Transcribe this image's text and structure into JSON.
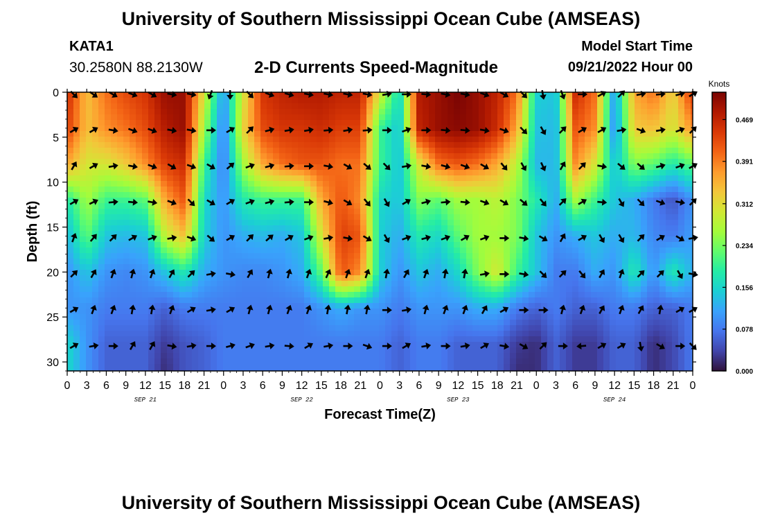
{
  "header": {
    "title": "University of Southern Mississippi Ocean Cube (AMSEAS)",
    "station_id": "KATA1",
    "coordinates": "30.2580N  88.2130W",
    "subtitle": "2-D Currents Speed-Magnitude",
    "model_start_label": "Model Start Time",
    "model_start_value": "09/21/2022 Hour 00"
  },
  "footer": {
    "title": "University of Southern Mississippi Ocean Cube (AMSEAS)"
  },
  "colors": {
    "scale": [
      "#30123b",
      "#4145ab",
      "#4675ed",
      "#39a2fc",
      "#1bcfd4",
      "#24eca6",
      "#61fc6c",
      "#a4fc3b",
      "#d1e834",
      "#f3c63a",
      "#fe9b2d",
      "#f36315",
      "#d93806",
      "#b11901",
      "#7a0403"
    ],
    "arrow": "#000000"
  },
  "chart_data": {
    "type": "heatmap",
    "title": "2-D Currents Speed-Magnitude",
    "xlabel": "Forecast Time(Z)",
    "ylabel": "Depth (ft)",
    "x_range_hours": [
      0,
      96
    ],
    "ylim": [
      0,
      31
    ],
    "x_tick_labels": [
      "0",
      "3",
      "6",
      "9",
      "12",
      "15",
      "18",
      "21",
      "0",
      "3",
      "6",
      "9",
      "12",
      "15",
      "18",
      "21",
      "0",
      "3",
      "6",
      "9",
      "12",
      "15",
      "18",
      "21",
      "0",
      "3",
      "6",
      "9",
      "12",
      "15",
      "18",
      "21",
      "0"
    ],
    "day_labels": [
      {
        "hour": 12,
        "label": "SEP 21"
      },
      {
        "hour": 36,
        "label": "SEP 22"
      },
      {
        "hour": 60,
        "label": "SEP 23"
      },
      {
        "hour": 84,
        "label": "SEP 24"
      }
    ],
    "y_ticks": [
      0,
      5,
      10,
      15,
      20,
      25,
      30
    ],
    "colorbar": {
      "unit": "Knots",
      "min": 0.0,
      "max": 0.52,
      "tick_values": [
        0.0,
        0.078,
        0.156,
        0.234,
        0.312,
        0.391,
        0.469
      ],
      "tick_labels": [
        "0.000",
        "0.078",
        "0.156",
        "0.234",
        "0.312",
        "0.391",
        "0.469"
      ]
    },
    "speed_hours": [
      0,
      3,
      6,
      9,
      12,
      15,
      18,
      21,
      24,
      27,
      30,
      33,
      36,
      39,
      42,
      45,
      48,
      51,
      54,
      57,
      60,
      63,
      66,
      69,
      72,
      75,
      78,
      81,
      84,
      87,
      90,
      93,
      96
    ],
    "speed_depths": [
      0,
      4,
      8,
      12,
      16,
      20,
      24,
      28,
      31
    ],
    "speed_knots": [
      [
        0.46,
        0.34,
        0.4,
        0.43,
        0.45,
        0.5,
        0.5,
        0.3,
        0.1,
        0.3,
        0.45,
        0.47,
        0.48,
        0.48,
        0.47,
        0.47,
        0.3,
        0.16,
        0.48,
        0.5,
        0.52,
        0.5,
        0.47,
        0.4,
        0.15,
        0.14,
        0.46,
        0.4,
        0.1,
        0.36,
        0.4,
        0.32,
        0.45
      ],
      [
        0.44,
        0.34,
        0.38,
        0.4,
        0.43,
        0.48,
        0.5,
        0.26,
        0.08,
        0.32,
        0.43,
        0.45,
        0.45,
        0.46,
        0.44,
        0.44,
        0.2,
        0.14,
        0.47,
        0.5,
        0.51,
        0.5,
        0.46,
        0.36,
        0.14,
        0.13,
        0.42,
        0.38,
        0.09,
        0.33,
        0.34,
        0.3,
        0.38
      ],
      [
        0.36,
        0.3,
        0.3,
        0.33,
        0.38,
        0.44,
        0.46,
        0.2,
        0.08,
        0.26,
        0.36,
        0.4,
        0.42,
        0.42,
        0.4,
        0.4,
        0.2,
        0.14,
        0.3,
        0.4,
        0.42,
        0.4,
        0.36,
        0.28,
        0.13,
        0.13,
        0.38,
        0.3,
        0.14,
        0.24,
        0.22,
        0.18,
        0.22
      ],
      [
        0.18,
        0.26,
        0.2,
        0.2,
        0.22,
        0.36,
        0.42,
        0.16,
        0.1,
        0.18,
        0.2,
        0.2,
        0.2,
        0.36,
        0.42,
        0.38,
        0.16,
        0.14,
        0.24,
        0.22,
        0.26,
        0.26,
        0.28,
        0.24,
        0.18,
        0.12,
        0.26,
        0.2,
        0.14,
        0.12,
        0.08,
        0.05,
        0.1
      ],
      [
        0.13,
        0.22,
        0.14,
        0.13,
        0.14,
        0.28,
        0.34,
        0.15,
        0.1,
        0.12,
        0.13,
        0.12,
        0.14,
        0.3,
        0.44,
        0.42,
        0.15,
        0.12,
        0.18,
        0.16,
        0.22,
        0.26,
        0.26,
        0.24,
        0.14,
        0.1,
        0.12,
        0.14,
        0.12,
        0.13,
        0.09,
        0.08,
        0.11
      ],
      [
        0.1,
        0.14,
        0.1,
        0.09,
        0.1,
        0.14,
        0.18,
        0.12,
        0.1,
        0.09,
        0.09,
        0.1,
        0.12,
        0.22,
        0.42,
        0.38,
        0.15,
        0.1,
        0.14,
        0.12,
        0.16,
        0.24,
        0.3,
        0.2,
        0.14,
        0.08,
        0.08,
        0.12,
        0.1,
        0.18,
        0.1,
        0.18,
        0.12
      ],
      [
        0.1,
        0.1,
        0.08,
        0.08,
        0.08,
        0.06,
        0.08,
        0.08,
        0.08,
        0.08,
        0.08,
        0.08,
        0.08,
        0.1,
        0.12,
        0.1,
        0.1,
        0.08,
        0.1,
        0.1,
        0.1,
        0.12,
        0.12,
        0.08,
        0.06,
        0.08,
        0.06,
        0.06,
        0.08,
        0.08,
        0.06,
        0.06,
        0.08
      ],
      [
        0.16,
        0.1,
        0.06,
        0.06,
        0.06,
        0.03,
        0.05,
        0.06,
        0.08,
        0.08,
        0.08,
        0.08,
        0.08,
        0.08,
        0.08,
        0.08,
        0.08,
        0.06,
        0.08,
        0.08,
        0.06,
        0.06,
        0.06,
        0.03,
        0.02,
        0.06,
        0.03,
        0.03,
        0.06,
        0.06,
        0.02,
        0.04,
        0.08
      ],
      [
        0.16,
        0.1,
        0.06,
        0.06,
        0.06,
        0.02,
        0.05,
        0.06,
        0.08,
        0.08,
        0.08,
        0.08,
        0.08,
        0.08,
        0.08,
        0.08,
        0.08,
        0.06,
        0.08,
        0.08,
        0.06,
        0.06,
        0.06,
        0.02,
        0.02,
        0.06,
        0.03,
        0.03,
        0.06,
        0.06,
        0.02,
        0.04,
        0.08
      ]
    ],
    "vector_depths": [
      0,
      4,
      8,
      12,
      16,
      20,
      24,
      28
    ],
    "vector_hours": [
      1,
      4,
      7,
      10,
      13,
      16,
      19,
      22,
      25,
      28,
      31,
      34,
      37,
      40,
      43,
      46,
      49,
      52,
      55,
      58,
      61,
      64,
      67,
      70,
      73,
      76,
      79,
      82,
      85,
      88,
      91,
      94,
      96
    ],
    "vector_directions_deg": [
      [
        135,
        125,
        120,
        110,
        120,
        100,
        100,
        200,
        180,
        135,
        110,
        105,
        100,
        100,
        100,
        100,
        80,
        90,
        95,
        100,
        100,
        110,
        120,
        135,
        170,
        160,
        90,
        60,
        45,
        80,
        85,
        75,
        60
      ],
      [
        60,
        60,
        100,
        110,
        110,
        100,
        100,
        90,
        60,
        45,
        75,
        80,
        80,
        85,
        80,
        85,
        90,
        70,
        90,
        95,
        95,
        100,
        110,
        135,
        150,
        45,
        60,
        60,
        80,
        110,
        80,
        70,
        45
      ],
      [
        30,
        60,
        80,
        100,
        110,
        120,
        110,
        120,
        50,
        70,
        75,
        85,
        90,
        100,
        120,
        130,
        135,
        80,
        100,
        105,
        110,
        120,
        140,
        150,
        155,
        30,
        45,
        100,
        130,
        130,
        75,
        70,
        60
      ],
      [
        60,
        65,
        85,
        95,
        100,
        110,
        135,
        120,
        60,
        70,
        75,
        85,
        90,
        105,
        120,
        140,
        150,
        60,
        75,
        85,
        95,
        110,
        120,
        130,
        140,
        45,
        60,
        95,
        150,
        135,
        110,
        100,
        45
      ],
      [
        20,
        40,
        45,
        60,
        70,
        80,
        110,
        130,
        60,
        45,
        50,
        60,
        70,
        80,
        100,
        120,
        150,
        70,
        75,
        70,
        60,
        70,
        90,
        100,
        120,
        30,
        60,
        150,
        150,
        45,
        60,
        120,
        80
      ],
      [
        45,
        30,
        20,
        15,
        20,
        30,
        45,
        80,
        100,
        30,
        15,
        15,
        20,
        25,
        20,
        20,
        10,
        30,
        20,
        10,
        10,
        80,
        90,
        100,
        135,
        45,
        140,
        30,
        20,
        45,
        45,
        150,
        100
      ],
      [
        60,
        20,
        20,
        10,
        10,
        20,
        60,
        80,
        60,
        15,
        15,
        20,
        20,
        10,
        10,
        10,
        90,
        80,
        15,
        20,
        20,
        30,
        60,
        90,
        90,
        15,
        20,
        30,
        20,
        30,
        10,
        60,
        60
      ],
      [
        60,
        80,
        90,
        30,
        30,
        100,
        80,
        90,
        75,
        70,
        80,
        95,
        60,
        80,
        90,
        110,
        90,
        60,
        80,
        90,
        80,
        60,
        100,
        120,
        45,
        90,
        265,
        60,
        60,
        170,
        120,
        90,
        135
      ]
    ]
  }
}
